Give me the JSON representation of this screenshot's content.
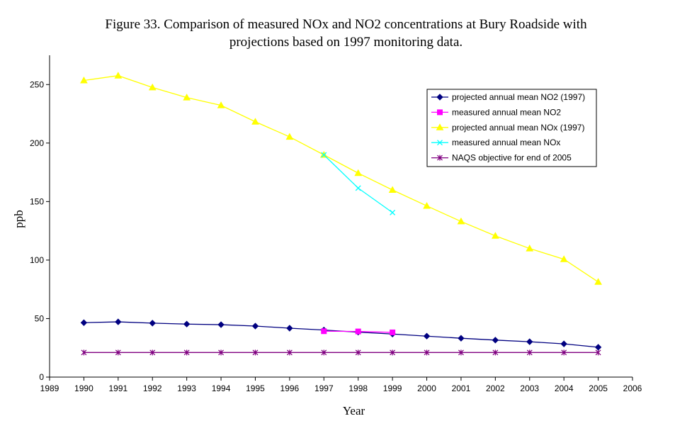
{
  "chart_data": {
    "type": "line",
    "title_line1": "Figure 33. Comparison of measured NOx and NO2 concentrations at Bury Roadside with",
    "title_line2": "projections based on 1997 monitoring data.",
    "xlabel": "Year",
    "ylabel": "ppb",
    "xlim": [
      1989,
      2006
    ],
    "ylim": [
      0,
      275
    ],
    "x_ticks": [
      1989,
      1990,
      1991,
      1992,
      1993,
      1994,
      1995,
      1996,
      1997,
      1998,
      1999,
      2000,
      2001,
      2002,
      2003,
      2004,
      2005,
      2006
    ],
    "y_ticks": [
      0,
      50,
      100,
      150,
      200,
      250
    ],
    "grid": false,
    "legend_position": "top-right",
    "series": [
      {
        "name": "projected annual mean NO2 (1997)",
        "color": "#000080",
        "marker": "diamond",
        "x": [
          1990,
          1991,
          1992,
          1993,
          1994,
          1995,
          1996,
          1997,
          1998,
          1999,
          2000,
          2001,
          2002,
          2003,
          2004,
          2005
        ],
        "y": [
          46.5,
          47.2,
          46.1,
          45.3,
          44.8,
          43.6,
          41.8,
          40.2,
          38.4,
          36.8,
          35.0,
          33.2,
          31.6,
          30.2,
          28.4,
          25.5
        ]
      },
      {
        "name": "measured annual mean NO2",
        "color": "#ff00ff",
        "marker": "square",
        "x": [
          1997,
          1998,
          1999
        ],
        "y": [
          39.2,
          39.0,
          38.2
        ]
      },
      {
        "name": "projected annual mean NOx (1997)",
        "color": "#ffff00",
        "marker": "triangle",
        "x": [
          1990,
          1991,
          1992,
          1993,
          1994,
          1995,
          1996,
          1997,
          1998,
          1999,
          2000,
          2001,
          2002,
          2003,
          2004,
          2005
        ],
        "y": [
          253.5,
          257.6,
          247.5,
          238.9,
          232.2,
          218.2,
          205.3,
          189.9,
          174.3,
          159.9,
          146.3,
          133.0,
          120.7,
          109.9,
          100.7,
          81.3
        ]
      },
      {
        "name": "measured annual mean NOx",
        "color": "#00ffff",
        "marker": "x",
        "x": [
          1997,
          1998,
          1999
        ],
        "y": [
          189.9,
          161.5,
          140.6
        ]
      },
      {
        "name": "NAQS objective for end of 2005",
        "color": "#800080",
        "marker": "star",
        "x": [
          1990,
          1991,
          1992,
          1993,
          1994,
          1995,
          1996,
          1997,
          1998,
          1999,
          2000,
          2001,
          2002,
          2003,
          2004,
          2005
        ],
        "y": [
          21,
          21,
          21,
          21,
          21,
          21,
          21,
          21,
          21,
          21,
          21,
          21,
          21,
          21,
          21,
          21
        ]
      }
    ]
  }
}
